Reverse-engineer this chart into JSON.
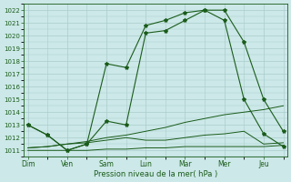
{
  "bg_color": "#cce8e8",
  "grid_color": "#aacccc",
  "line_color": "#1a5c1a",
  "xlabel": "Pression niveau de la mer( hPa )",
  "ylim": [
    1010.5,
    1022.5
  ],
  "yticks": [
    1011,
    1012,
    1013,
    1014,
    1015,
    1016,
    1017,
    1018,
    1019,
    1020,
    1021,
    1022
  ],
  "days": [
    "Dim",
    "Ven",
    "Sam",
    "Lun",
    "Mar",
    "Mer",
    "Jeu"
  ],
  "day_positions": [
    0,
    1,
    2,
    3,
    4,
    5,
    6
  ],
  "xlim": [
    -0.1,
    6.6
  ],
  "series1": {
    "x": [
      0,
      0.5,
      1.0,
      1.5,
      2.0,
      2.5,
      3.0,
      3.5,
      4.0,
      4.5,
      5.0,
      5.5,
      6.0,
      6.5
    ],
    "y": [
      1013,
      1012.2,
      1011,
      1011.5,
      1017.8,
      1017.5,
      1020.8,
      1021.2,
      1021.8,
      1022.0,
      1022.0,
      1019.5,
      1015.0,
      1012.5
    ]
  },
  "series2": {
    "x": [
      0,
      0.5,
      1.0,
      1.5,
      2.0,
      2.5,
      3.0,
      3.5,
      4.0,
      4.5,
      5.0,
      5.5,
      6.0,
      6.5
    ],
    "y": [
      1013,
      1012.2,
      1011,
      1011.5,
      1013.3,
      1013.0,
      1020.2,
      1020.4,
      1021.2,
      1022.0,
      1021.2,
      1015.0,
      1012.3,
      1011.3
    ]
  },
  "series3": {
    "x": [
      0,
      0.5,
      1.0,
      1.5,
      2.0,
      2.5,
      3.0,
      3.5,
      4.0,
      4.5,
      5.0,
      5.5,
      6.0,
      6.5
    ],
    "y": [
      1011.0,
      1011.0,
      1011.0,
      1011.0,
      1011.1,
      1011.1,
      1011.2,
      1011.2,
      1011.3,
      1011.3,
      1011.3,
      1011.3,
      1011.3,
      1011.4
    ]
  },
  "series4": {
    "x": [
      0,
      0.5,
      1.0,
      1.5,
      2.0,
      2.5,
      3.0,
      3.5,
      4.0,
      4.5,
      5.0,
      5.5,
      6.0,
      6.5
    ],
    "y": [
      1011.2,
      1011.3,
      1011.5,
      1011.7,
      1012.0,
      1012.2,
      1012.5,
      1012.8,
      1013.2,
      1013.5,
      1013.8,
      1014.0,
      1014.2,
      1014.5
    ]
  },
  "series5": {
    "x": [
      0,
      0.5,
      1.0,
      1.5,
      2.0,
      2.5,
      3.0,
      3.5,
      4.0,
      4.5,
      5.0,
      5.5,
      6.0,
      6.5
    ],
    "y": [
      1011.2,
      1011.3,
      1011.5,
      1011.6,
      1011.8,
      1012.0,
      1011.8,
      1011.8,
      1012.0,
      1012.2,
      1012.3,
      1012.5,
      1011.5,
      1011.6
    ]
  }
}
